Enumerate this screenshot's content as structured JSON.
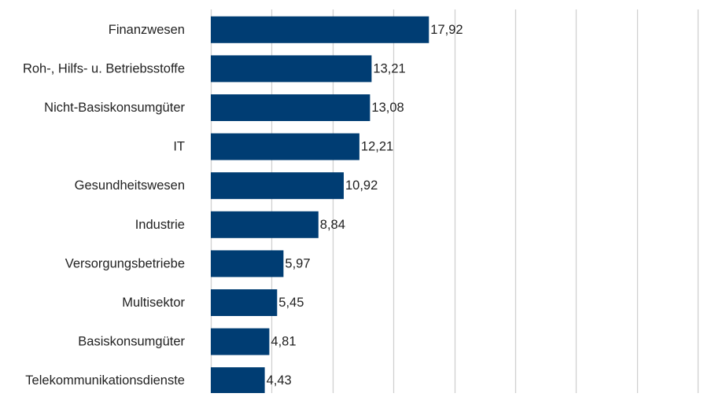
{
  "chart_data": {
    "type": "bar",
    "orientation": "horizontal",
    "title": "",
    "xlabel": "",
    "ylabel": "",
    "categories": [
      "Finanzwesen",
      "Roh-, Hilfs- u. Betriebsstoffe",
      "Nicht-Basiskonsumgüter",
      "IT",
      "Gesundheitswesen",
      "Industrie",
      "Versorgungsbetriebe",
      "Multisektor",
      "Basiskonsumgüter",
      "Telekommunikationsdienste"
    ],
    "values": [
      17.92,
      13.21,
      13.08,
      12.21,
      10.92,
      8.84,
      5.97,
      5.45,
      4.81,
      4.43
    ],
    "value_labels": [
      "17,92",
      "13,21",
      "13,08",
      "12,21",
      "10,92",
      "8,84",
      "5,97",
      "5,45",
      "4,81",
      "4,43"
    ],
    "xlim": [
      0,
      40
    ],
    "grid": true,
    "legend": "none",
    "bar_color": "#003d73",
    "grid_color": "#d0d0d0",
    "text_color": "#222222"
  }
}
